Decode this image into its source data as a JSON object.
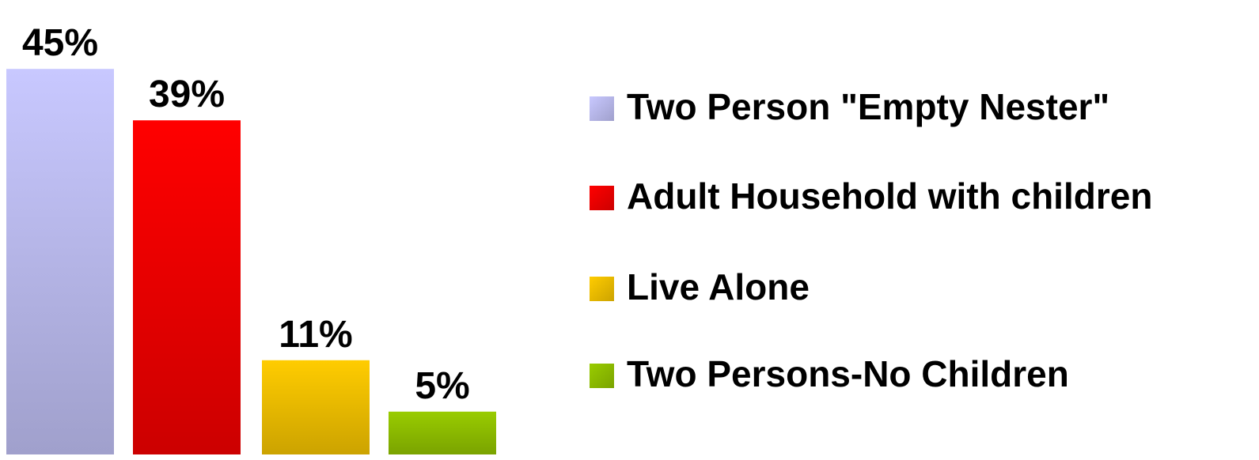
{
  "chart_data": {
    "type": "bar",
    "series": [
      {
        "name": "Two Person \"Empty Nester\"",
        "color": "#c8c8ff",
        "values": [
          45
        ],
        "value_labels": [
          "45%"
        ]
      },
      {
        "name": "Adult Household with children",
        "color": "#ff0000",
        "values": [
          39
        ],
        "value_labels": [
          "39%"
        ]
      },
      {
        "name": "Live Alone",
        "color": "#ffcc00",
        "values": [
          11
        ],
        "value_labels": [
          "11%"
        ]
      },
      {
        "name": "Two Persons-No Children",
        "color": "#99cc00",
        "values": [
          5
        ],
        "value_labels": [
          "5%"
        ]
      }
    ],
    "ylim": [
      0,
      50
    ],
    "legend": "right"
  }
}
